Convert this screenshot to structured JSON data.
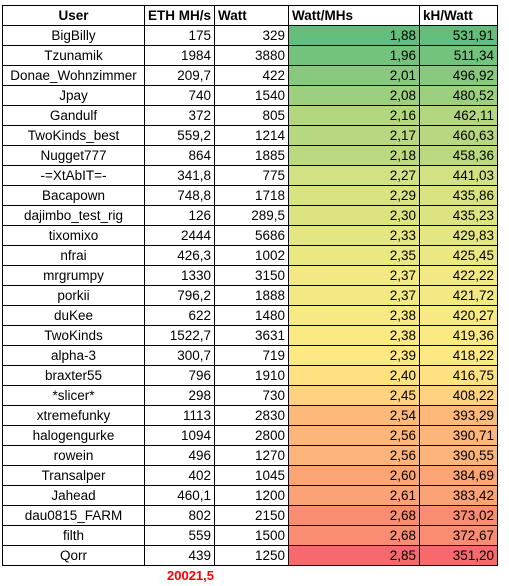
{
  "headers": [
    "User",
    "ETH MH/s",
    "Watt",
    "Watt/MHs",
    "kH/Watt"
  ],
  "rows": [
    {
      "user": "BigBilly",
      "eth": "175",
      "watt": "329",
      "ratio": "1,88",
      "khw": "531,91",
      "color": "#63be7b"
    },
    {
      "user": "Tzunamik",
      "eth": "1984",
      "watt": "3880",
      "ratio": "1,96",
      "khw": "511,34",
      "color": "#73c37d"
    },
    {
      "user": "Donae_Wohnzimmer",
      "eth": "209,7",
      "watt": "422",
      "ratio": "2,01",
      "khw": "496,92",
      "color": "#87c97e"
    },
    {
      "user": "Jpay",
      "eth": "740",
      "watt": "1540",
      "ratio": "2,08",
      "khw": "480,52",
      "color": "#9cd07f"
    },
    {
      "user": "Gandulf",
      "eth": "372",
      "watt": "805",
      "ratio": "2,16",
      "khw": "462,11",
      "color": "#b3d780"
    },
    {
      "user": "TwoKinds_best",
      "eth": "559,2",
      "watt": "1214",
      "ratio": "2,17",
      "khw": "460,63",
      "color": "#b7d881"
    },
    {
      "user": "Nugget777",
      "eth": "864",
      "watt": "1885",
      "ratio": "2,18",
      "khw": "458,36",
      "color": "#bad981"
    },
    {
      "user": "-=XtAbIT=-",
      "eth": "341,8",
      "watt": "775",
      "ratio": "2,27",
      "khw": "441,03",
      "color": "#d2e183"
    },
    {
      "user": "Bacapown",
      "eth": "748,8",
      "watt": "1718",
      "ratio": "2,29",
      "khw": "435,86",
      "color": "#d9e382"
    },
    {
      "user": "dajimbo_test_rig",
      "eth": "126",
      "watt": "289,5",
      "ratio": "2,30",
      "khw": "435,23",
      "color": "#dce482"
    },
    {
      "user": "tixomixo",
      "eth": "2444",
      "watt": "5686",
      "ratio": "2,33",
      "khw": "429,83",
      "color": "#e4e683"
    },
    {
      "user": "nfrai",
      "eth": "426,3",
      "watt": "1002",
      "ratio": "2,35",
      "khw": "425,45",
      "color": "#ebe783"
    },
    {
      "user": "mrgrumpy",
      "eth": "1330",
      "watt": "3150",
      "ratio": "2,37",
      "khw": "422,22",
      "color": "#f2e984"
    },
    {
      "user": "porkii",
      "eth": "796,2",
      "watt": "1888",
      "ratio": "2,37",
      "khw": "421,72",
      "color": "#f3e984"
    },
    {
      "user": "duKee",
      "eth": "622",
      "watt": "1480",
      "ratio": "2,38",
      "khw": "420,27",
      "color": "#f7ea84"
    },
    {
      "user": "TwoKinds",
      "eth": "1522,7",
      "watt": "3631",
      "ratio": "2,38",
      "khw": "419,36",
      "color": "#fbea84"
    },
    {
      "user": "alpha-3",
      "eth": "300,7",
      "watt": "719",
      "ratio": "2,39",
      "khw": "418,22",
      "color": "#fee883"
    },
    {
      "user": "braxter55",
      "eth": "796",
      "watt": "1910",
      "ratio": "2,40",
      "khw": "416,75",
      "color": "#fee282"
    },
    {
      "user": "*slicer*",
      "eth": "298",
      "watt": "730",
      "ratio": "2,45",
      "khw": "408,22",
      "color": "#fed280"
    },
    {
      "user": "xtremefunky",
      "eth": "1113",
      "watt": "2830",
      "ratio": "2,54",
      "khw": "393,29",
      "color": "#fcb97a"
    },
    {
      "user": "halogengurke",
      "eth": "1094",
      "watt": "2800",
      "ratio": "2,56",
      "khw": "390,71",
      "color": "#fcb57a"
    },
    {
      "user": "rowein",
      "eth": "496",
      "watt": "1270",
      "ratio": "2,56",
      "khw": "390,55",
      "color": "#fcb47a"
    },
    {
      "user": "Transalper",
      "eth": "402",
      "watt": "1045",
      "ratio": "2,60",
      "khw": "384,69",
      "color": "#fba577"
    },
    {
      "user": "Jahead",
      "eth": "460,1",
      "watt": "1200",
      "ratio": "2,61",
      "khw": "383,42",
      "color": "#fba277"
    },
    {
      "user": "dau0815_FARM",
      "eth": "802",
      "watt": "2150",
      "ratio": "2,68",
      "khw": "373,02",
      "color": "#f98d72"
    },
    {
      "user": "filth",
      "eth": "559",
      "watt": "1500",
      "ratio": "2,68",
      "khw": "372,67",
      "color": "#f98c72"
    },
    {
      "user": "Qorr",
      "eth": "439",
      "watt": "1250",
      "ratio": "2,85",
      "khw": "351,20",
      "color": "#f8696b"
    }
  ],
  "total_eth": "20021,5",
  "total_color": "#ff0000"
}
